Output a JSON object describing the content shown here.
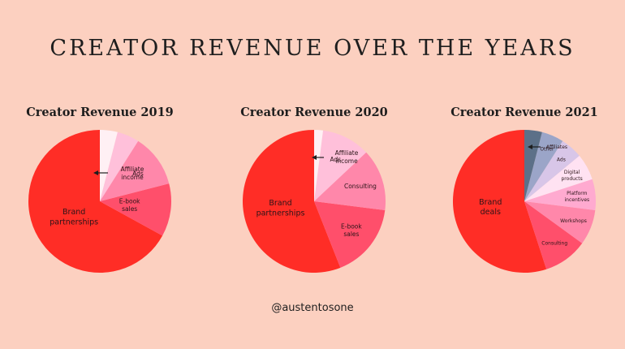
{
  "header": {
    "title": "CREATOR REVENUE OVER THE YEARS"
  },
  "footer": {
    "credit": "@austentosone"
  },
  "chart_data": [
    {
      "type": "pie",
      "title": "Creator Revenue 2019",
      "slices": [
        {
          "label": "Brand partnerships",
          "value": 67,
          "color": "#ff2d26"
        },
        {
          "label": "E-book sales",
          "value": 12,
          "color": "#ff4f6b"
        },
        {
          "label": "Ads",
          "value": 12,
          "color": "#ff87aa"
        },
        {
          "label": "",
          "value": 5,
          "color": "#ffc0da"
        },
        {
          "label": "Affiliate income",
          "value": 4,
          "color": "#fff0f4"
        }
      ],
      "annotation": {
        "label": "Affiliate income",
        "arrow": true
      }
    },
    {
      "type": "pie",
      "title": "Creator Revenue 2020",
      "slices": [
        {
          "label": "Brand partnerships",
          "value": 56,
          "color": "#ff2d26"
        },
        {
          "label": "E-book sales",
          "value": 17,
          "color": "#ff4f6b"
        },
        {
          "label": "Consulting",
          "value": 14,
          "color": "#ff87aa"
        },
        {
          "label": "Ads",
          "value": 11,
          "color": "#ffc0da"
        },
        {
          "label": "Affiliate income",
          "value": 2,
          "color": "#fff0f4"
        }
      ],
      "annotation": {
        "label": "Affiliate income",
        "arrow": true
      }
    },
    {
      "type": "pie",
      "title": "Creator Revenue 2021",
      "slices": [
        {
          "label": "Brand deals",
          "value": 55,
          "color": "#ff2d26"
        },
        {
          "label": "Consulting",
          "value": 10,
          "color": "#ff4f6b"
        },
        {
          "label": "Workshops",
          "value": 8,
          "color": "#ff87aa"
        },
        {
          "label": "Platform incentives",
          "value": 7,
          "color": "#ffaad0"
        },
        {
          "label": "Digital products",
          "value": 6,
          "color": "#ffe2f2"
        },
        {
          "label": "Ads",
          "value": 5,
          "color": "#d8c6e8"
        },
        {
          "label": "Other",
          "value": 5,
          "color": "#9ba5c8"
        },
        {
          "label": "Affiliates",
          "value": 4,
          "color": "#5c7088"
        }
      ],
      "annotation": {
        "label": "Affiliates",
        "arrow": true
      }
    }
  ]
}
